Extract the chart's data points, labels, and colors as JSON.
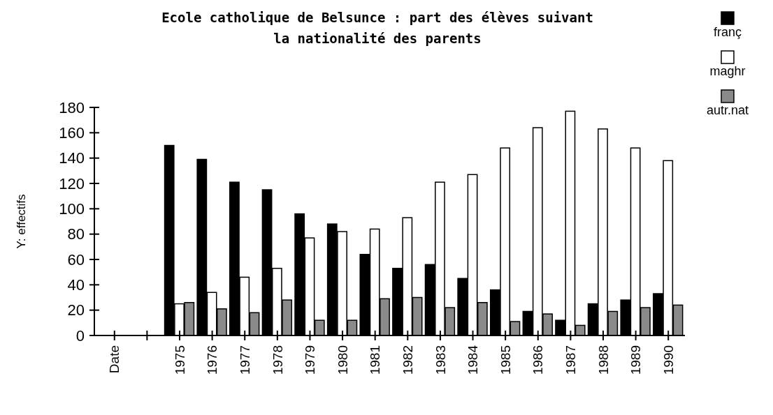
{
  "chart_data": {
    "type": "bar",
    "title": "Ecole catholique de Belsunce : part des élèves suivant la nationalité des parents",
    "ylabel": "Y: effectifs",
    "categories": [
      "Date",
      null,
      "1975",
      "1976",
      "1977",
      "1978",
      "1979",
      "1980",
      "1981",
      "1982",
      "1983",
      "1984",
      "1985",
      "1986",
      "1987",
      "1988",
      "1989",
      "1990"
    ],
    "series": [
      {
        "name": "franç",
        "color": "#000000",
        "values": [
          null,
          null,
          150,
          139,
          121,
          115,
          96,
          88,
          64,
          53,
          56,
          45,
          36,
          19,
          12,
          25,
          28,
          33
        ]
      },
      {
        "name": "maghr",
        "color": "#ffffff",
        "values": [
          null,
          null,
          25,
          34,
          46,
          53,
          77,
          82,
          84,
          93,
          121,
          127,
          148,
          164,
          177,
          163,
          148,
          138
        ]
      },
      {
        "name": "autr.nat",
        "color": "#8a8a8a",
        "values": [
          null,
          null,
          26,
          21,
          18,
          28,
          12,
          12,
          29,
          30,
          22,
          26,
          11,
          17,
          8,
          19,
          22,
          24
        ]
      }
    ],
    "ylim": [
      0,
      180
    ],
    "yticks": [
      0,
      20,
      40,
      60,
      80,
      100,
      120,
      140,
      160,
      180
    ],
    "grid": false,
    "legend": "top right"
  }
}
